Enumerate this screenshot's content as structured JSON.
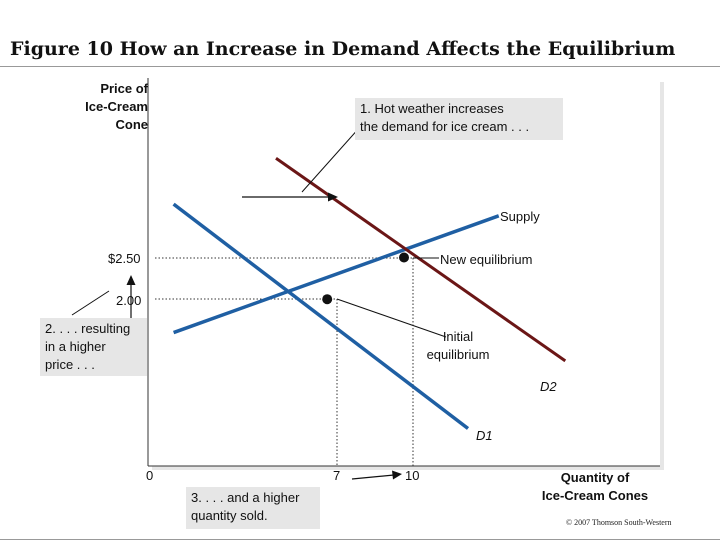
{
  "title": "Figure 10 How an Increase in Demand Affects the Equilibrium",
  "copyright": "© 2007 Thomson South-Western",
  "colors": {
    "demand": "#1f5fa3",
    "supply_and_new_demand": "#6b1616",
    "annotation_box": "#e6e6e6",
    "plot_bg": "#e6e6e6"
  },
  "annotations": {
    "hot_weather": [
      "1. Hot weather increases",
      "the demand for ice cream . . ."
    ],
    "resulting_price": [
      "2. . . . resulting",
      "in a higher",
      "price . . ."
    ],
    "quantity_sold": [
      "3. . . . and a higher",
      "quantity sold."
    ],
    "new_equilibrium": "New equilibrium",
    "initial_equilibrium": [
      "Initial",
      "equilibrium"
    ],
    "supply": "Supply",
    "d2": "D2",
    "d1": "D1"
  },
  "chart_data": {
    "type": "line",
    "title": "Figure 10 How an Increase in Demand Affects the Equilibrium",
    "ylabel": [
      "Price of",
      "Ice-Cream",
      "Cone"
    ],
    "xlabel": [
      "Quantity of",
      "Ice-Cream Cones"
    ],
    "y_ticks": [
      "$2.50",
      "2.00"
    ],
    "x_ticks": [
      "0",
      "7",
      "10"
    ],
    "equilibria": [
      {
        "name": "Initial equilibrium",
        "quantity": 7,
        "price": 2.0
      },
      {
        "name": "New equilibrium",
        "quantity": 10,
        "price": 2.5
      }
    ],
    "series": [
      {
        "name": "Supply",
        "points": [
          [
            1,
            1.6
          ],
          [
            13.7,
            3.0
          ]
        ]
      },
      {
        "name": "D1",
        "points": [
          [
            1,
            3.14
          ],
          [
            12.5,
            0.45
          ]
        ]
      },
      {
        "name": "D2",
        "points": [
          [
            5,
            3.69
          ],
          [
            16.3,
            1.26
          ]
        ]
      }
    ]
  }
}
